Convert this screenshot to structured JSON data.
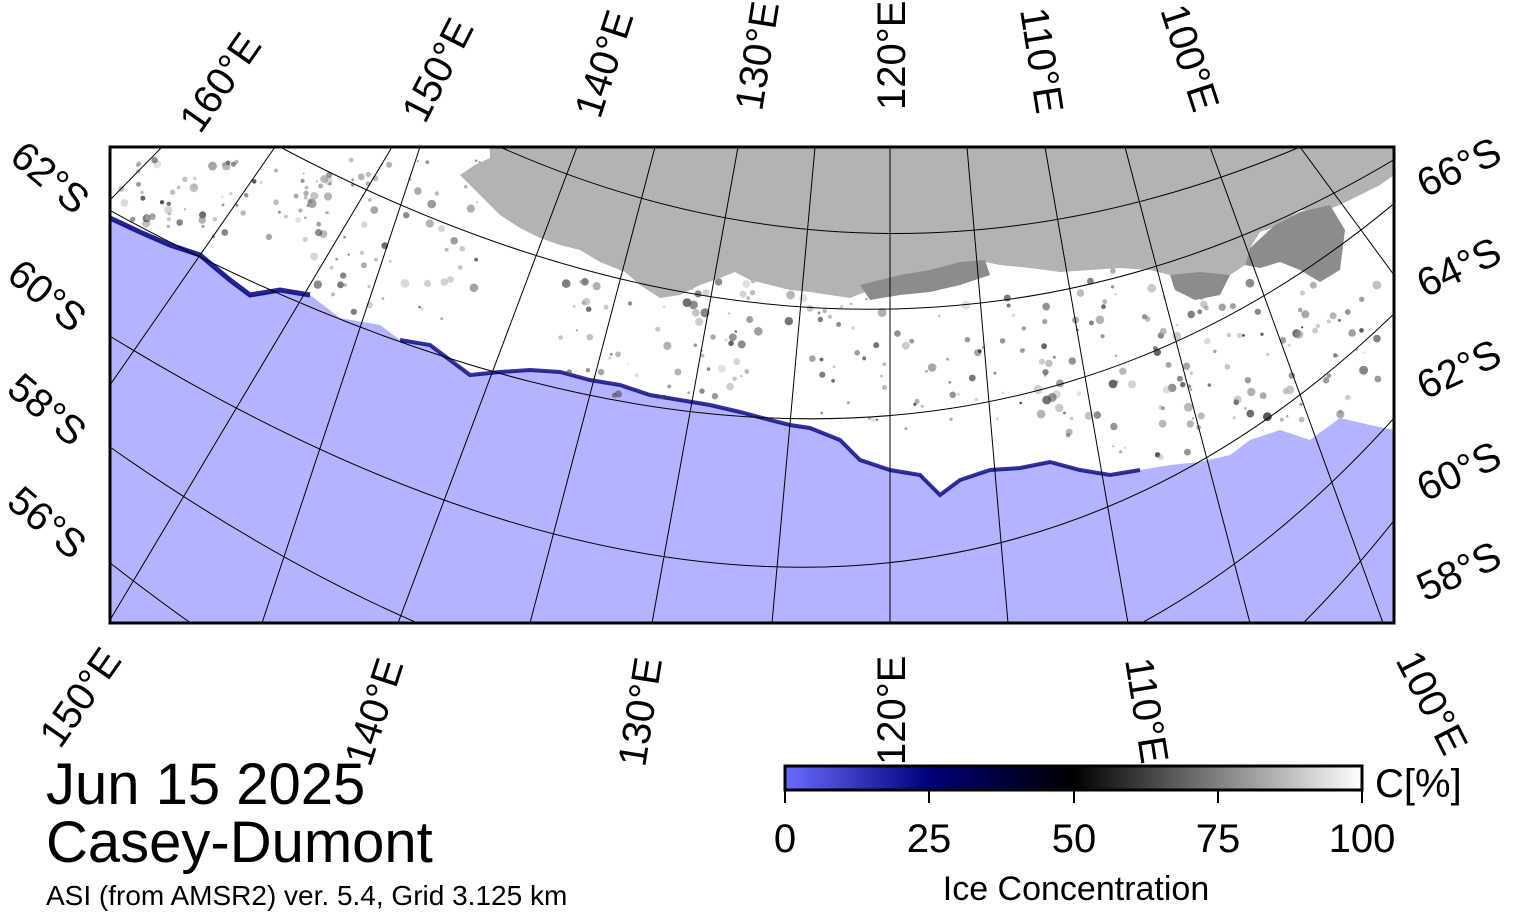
{
  "map": {
    "date": "Jun 15 2025",
    "region": "Casey-Dumont",
    "source": "ASI (from AMSR2) ver. 5.4,  Grid 3.125 km",
    "colors": {
      "ocean": "#b3b3ff",
      "land": "#b3b3b3",
      "land_dark": "#8c8c8c",
      "ice_high": "#ffffff",
      "ice_edge": "#000080",
      "frame": "#000000"
    },
    "top_lon_labels": [
      "160°E",
      "150°E",
      "140°E",
      "130°E",
      "120°E",
      "110°E",
      "100°E"
    ],
    "bottom_lon_labels": [
      "150°E",
      "140°E",
      "130°E",
      "120°E",
      "110°E",
      "100°E"
    ],
    "left_lat_labels": [
      "62°S",
      "60°S",
      "58°S",
      "56°S"
    ],
    "right_lat_labels": [
      "66°S",
      "64°S",
      "62°S",
      "60°S",
      "58°S"
    ]
  },
  "colorbar": {
    "title": "Ice Concentration",
    "unit": "C[%]",
    "ticks": [
      "0",
      "25",
      "50",
      "75",
      "100"
    ],
    "colors": [
      "#6b6bff",
      "#00007a",
      "#000000",
      "#808080",
      "#ffffff"
    ]
  }
}
